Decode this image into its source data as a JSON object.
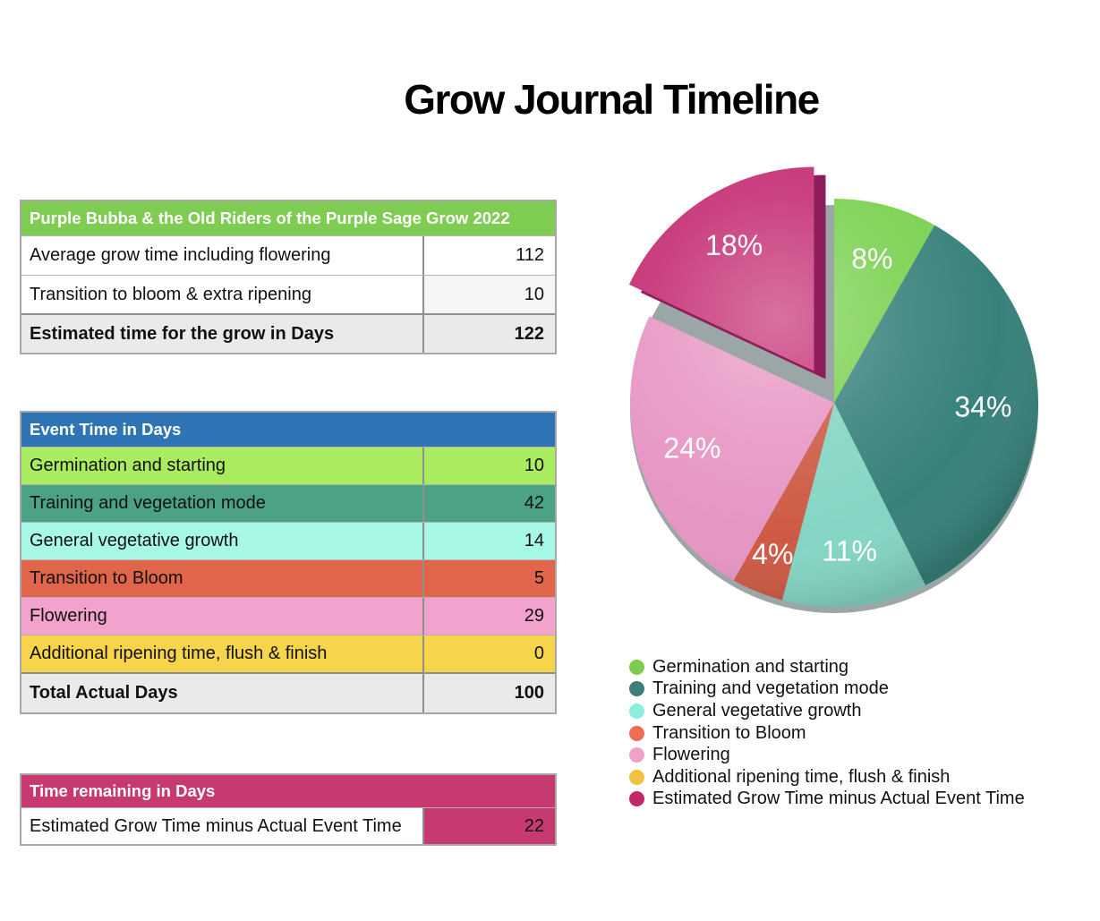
{
  "page": {
    "title": "Grow Journal Timeline"
  },
  "tables": [
    {
      "id": "grow-estimate",
      "header": "Purple Bubba & the Old Riders of the Purple Sage Grow 2022",
      "header_bg": "#7ecc52",
      "rows": [
        {
          "label": "Average grow time including flowering",
          "value": "112"
        },
        {
          "label": "Transition to bloom & extra ripening",
          "value": "10",
          "value_bg": "#f5f5f5"
        },
        {
          "label": "Estimated time for the grow in Days",
          "value": "122",
          "bg": "#eaeaea",
          "bold": true,
          "total": true
        }
      ]
    },
    {
      "id": "event-time",
      "header": "Event Time in Days",
      "header_bg": "#2f74b4",
      "rows": [
        {
          "label": "Germination and starting",
          "value": "10",
          "bg": "#a9ec5f"
        },
        {
          "label": "Training and vegetation mode",
          "value": "42",
          "bg": "#4ca284"
        },
        {
          "label": "General vegetative growth",
          "value": "14",
          "bg": "#a8f8e8"
        },
        {
          "label": "Transition to Bloom",
          "value": "5",
          "bg": "#e0654a"
        },
        {
          "label": "Flowering",
          "value": "29",
          "bg": "#f2a2cd"
        },
        {
          "label": "Additional ripening time, flush & finish",
          "value": "0",
          "bg": "#f6d44c"
        },
        {
          "label": "Total Actual Days",
          "value": "100",
          "bg": "#eaeaea",
          "bold": true,
          "total": true
        }
      ]
    },
    {
      "id": "time-remaining",
      "header": "Time remaining in Days",
      "header_bg": "#c73971",
      "rows": [
        {
          "label": "Estimated Grow Time minus Actual Event Time",
          "value": "22",
          "label_bg": "#ffffff",
          "value_bg": "#c73971"
        }
      ]
    }
  ],
  "chart_data": {
    "type": "pie",
    "title": "Grow Journal Timeline",
    "units": "days",
    "total": 122,
    "start_angle_deg": 0,
    "direction": "clockwise",
    "legend_position": "bottom-right",
    "slices": [
      {
        "label": "Germination and starting",
        "value": 10,
        "percent_label": "8%",
        "color": "#7ad14f",
        "exploded": false
      },
      {
        "label": "Training and vegetation mode",
        "value": 42,
        "percent_label": "34%",
        "color": "#38817b",
        "exploded": false
      },
      {
        "label": "General vegetative growth",
        "value": 14,
        "percent_label": "11%",
        "color": "#84d5c5",
        "exploded": false
      },
      {
        "label": "Transition to Bloom",
        "value": 5,
        "percent_label": "4%",
        "color": "#cd5a44",
        "exploded": false
      },
      {
        "label": "Flowering",
        "value": 29,
        "percent_label": "24%",
        "color": "#e795c3",
        "exploded": false
      },
      {
        "label": "Additional ripening time, flush & finish",
        "value": 0,
        "percent_label": "",
        "color": "#eec33e",
        "exploded": false
      },
      {
        "label": "Estimated Grow Time minus Actual Event Time",
        "value": 22,
        "percent_label": "18%",
        "color": "#c52d73",
        "side_color": "#8e1d5c",
        "exploded": true
      }
    ]
  },
  "legend": {
    "items": [
      {
        "label": "Germination and starting",
        "color": "#7ccd4f"
      },
      {
        "label": "Training and vegetation mode",
        "color": "#3c7e79"
      },
      {
        "label": "General vegetative growth",
        "color": "#8cefdc"
      },
      {
        "label": "Transition to Bloom",
        "color": "#ed6d55"
      },
      {
        "label": "Flowering",
        "color": "#f2a0c7"
      },
      {
        "label": "Additional ripening time, flush & finish",
        "color": "#edc33f"
      },
      {
        "label": "Estimated Grow Time minus Actual Event Time",
        "color": "#c22868"
      }
    ]
  }
}
